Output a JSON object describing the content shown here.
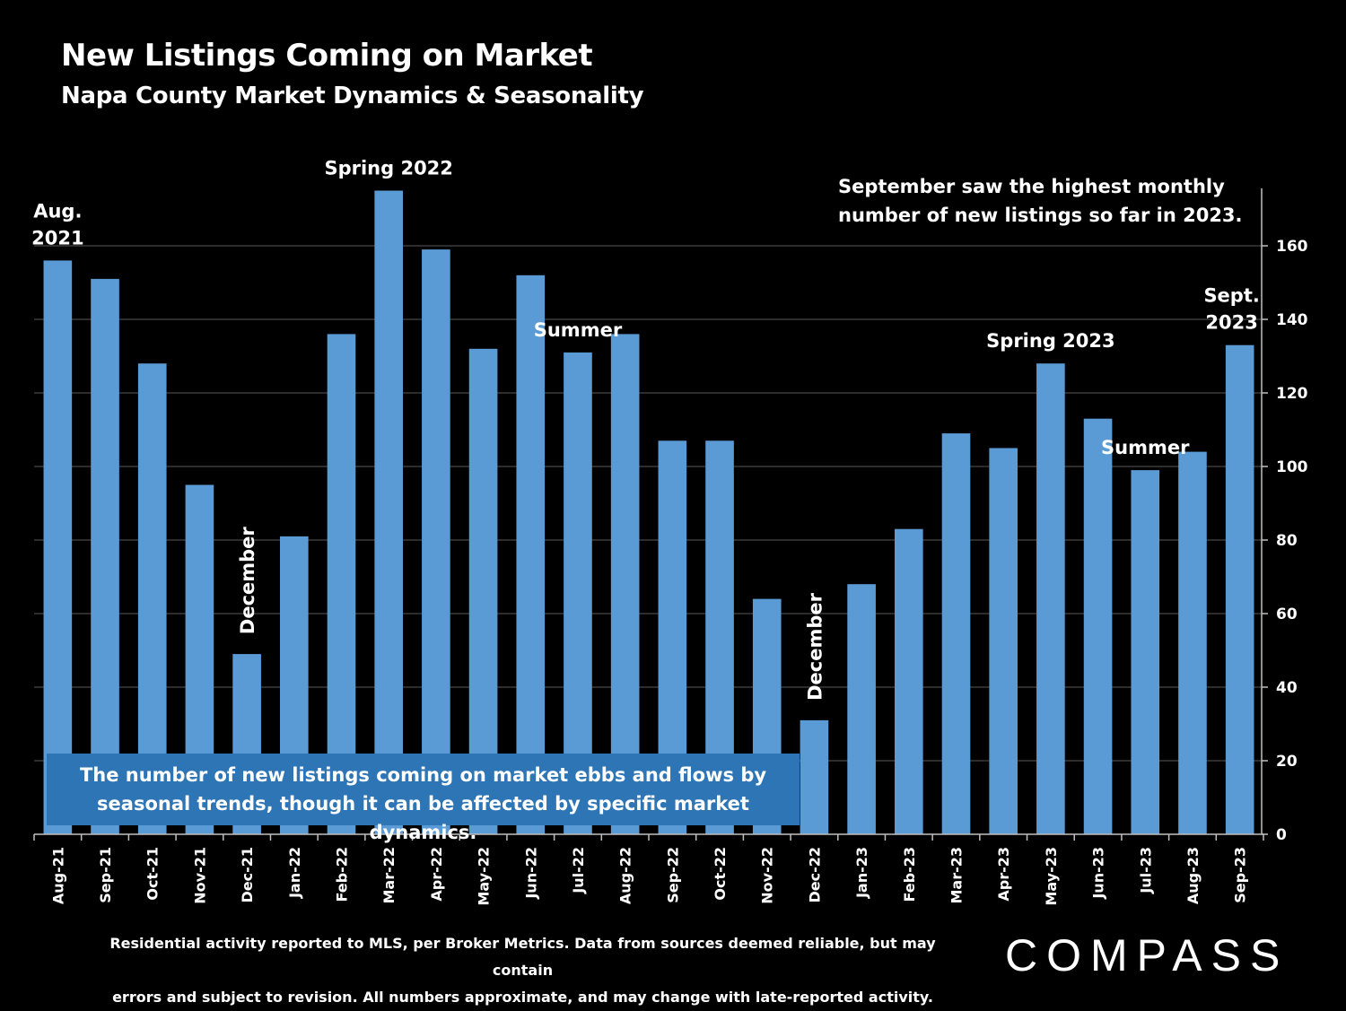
{
  "title": "New Listings Coming on Market",
  "subtitle": "Napa County Market Dynamics & Seasonality",
  "colors": {
    "bar": "#5b9bd5",
    "background": "#000000",
    "grid": "#595959",
    "infobox": "#2e75b6"
  },
  "info_box": {
    "line1": "The number of new listings coming on market ebbs and flows by",
    "line2": "seasonal trends, though it can be affected by specific market dynamics."
  },
  "note": {
    "line1": "September saw the highest monthly",
    "line2": "number of new listings so far in 2023."
  },
  "footnote": {
    "line1": "Residential activity reported to MLS, per Broker Metrics. Data from sources deemed reliable, but may contain",
    "line2": "errors and subject to revision. All numbers approximate, and may change with late-reported activity."
  },
  "logo": "COMPASS",
  "chart_data": {
    "type": "bar",
    "categories": [
      "Aug-21",
      "Sep-21",
      "Oct-21",
      "Nov-21",
      "Dec-21",
      "Jan-22",
      "Feb-22",
      "Mar-22",
      "Apr-22",
      "May-22",
      "Jun-22",
      "Jul-22",
      "Aug-22",
      "Sep-22",
      "Oct-22",
      "Nov-22",
      "Dec-22",
      "Jan-23",
      "Feb-23",
      "Mar-23",
      "Apr-23",
      "May-23",
      "Jun-23",
      "Jul-23",
      "Aug-23",
      "Sep-23"
    ],
    "values": [
      156,
      151,
      128,
      95,
      49,
      81,
      136,
      175,
      159,
      132,
      152,
      131,
      136,
      107,
      107,
      64,
      31,
      68,
      83,
      109,
      105,
      128,
      113,
      99,
      104,
      133
    ],
    "ylim": [
      0,
      175
    ],
    "yticks": [
      0,
      20,
      40,
      60,
      80,
      100,
      120,
      140,
      160
    ],
    "y_axis_side": "right",
    "grid": true,
    "annotations": [
      {
        "index": 0,
        "lines": [
          "Aug.",
          "2021"
        ]
      },
      {
        "index": 4,
        "lines": [
          "December"
        ],
        "vertical": true
      },
      {
        "index": 7,
        "lines": [
          "Spring 2022"
        ]
      },
      {
        "index": 11,
        "lines": [
          "Summer"
        ]
      },
      {
        "index": 16,
        "lines": [
          "December"
        ],
        "vertical": true
      },
      {
        "index": 21,
        "lines": [
          "Spring 2023"
        ]
      },
      {
        "index": 23,
        "lines": [
          "Summer"
        ]
      },
      {
        "index": 25,
        "lines": [
          "Sept.",
          "2023"
        ]
      }
    ]
  }
}
